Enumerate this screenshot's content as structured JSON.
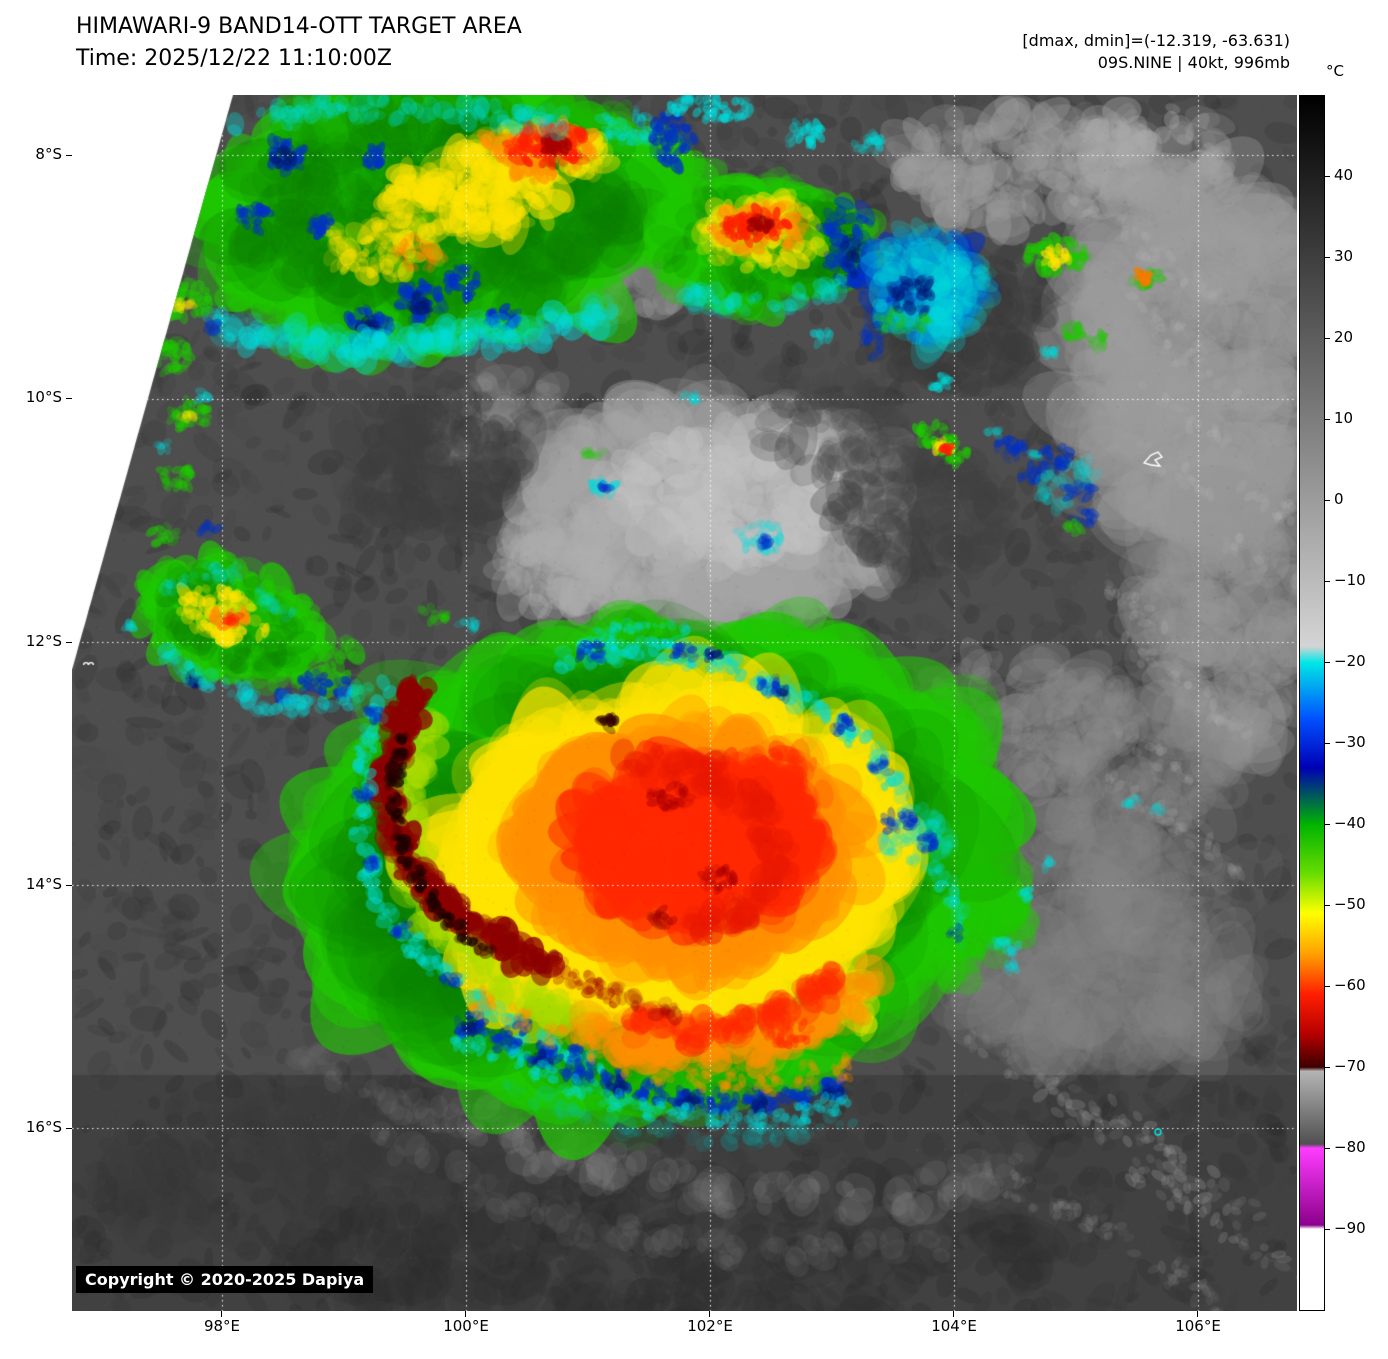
{
  "header": {
    "title": "HIMAWARI-9 BAND14-OTT TARGET AREA",
    "time": "Time: 2025/12/22 11:10:00Z",
    "dmax_dmin": "[dmax, dmin]=(-12.319, -63.631)",
    "storm_info": "09S.NINE | 40kt, 996mb"
  },
  "map": {
    "copyright": "Copyright © 2020-2025 Dapiya",
    "lat_labels": [
      "8°S",
      "10°S",
      "12°S",
      "14°S",
      "16°S"
    ],
    "lon_labels": [
      "98°E",
      "100°E",
      "102°E",
      "104°E",
      "106°E"
    ]
  },
  "colorbar": {
    "unit": "°C",
    "top_value": 50,
    "bottom_value": -100,
    "ticks": [
      "40",
      "30",
      "20",
      "10",
      "0",
      "−10",
      "−20",
      "−30",
      "−40",
      "−50",
      "−60",
      "−70",
      "−80",
      "−90"
    ],
    "stops": [
      [
        50,
        "#000000"
      ],
      [
        -18,
        "#d4d4d4"
      ],
      [
        -20,
        "#00e6e6"
      ],
      [
        -27,
        "#0050ff"
      ],
      [
        -33,
        "#0000b4"
      ],
      [
        -40,
        "#00b400"
      ],
      [
        -46,
        "#66dc00"
      ],
      [
        -51,
        "#ffff00"
      ],
      [
        -56,
        "#ffa000"
      ],
      [
        -61,
        "#ff1e00"
      ],
      [
        -66,
        "#b40000"
      ],
      [
        -70,
        "#3c0000"
      ],
      [
        -70.5,
        "#b4b4b4"
      ],
      [
        -79.5,
        "#505050"
      ],
      [
        -80,
        "#ff3cff"
      ],
      [
        -89.5,
        "#8c008c"
      ],
      [
        -90,
        "#ffffff"
      ],
      [
        -100,
        "#ffffff"
      ]
    ]
  }
}
